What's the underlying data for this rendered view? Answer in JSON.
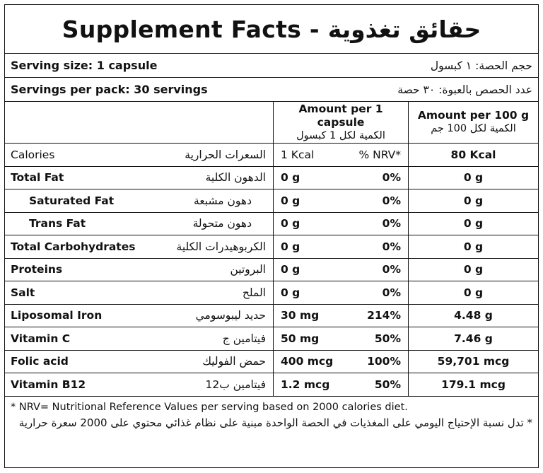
{
  "title": "Supplement Facts - حقائق تغذوية",
  "serving_size": {
    "en": "Serving size: 1 capsule",
    "ar": "حجم الحصة: ١ كبسول"
  },
  "servings_per_pack": {
    "en": "Servings per pack: 30 servings",
    "ar": "عدد الحصص بالعبوة: ٣٠ حصة"
  },
  "header": {
    "col2_en": "Amount per 1 capsule",
    "col2_ar": "الكمية لكل 1 كبسول",
    "col3_en": "Amount per 100 g",
    "col3_ar": "الكمية لكل 100 جم"
  },
  "calories": {
    "en": "Calories",
    "ar": "السعرات الحرارية",
    "amount": "1 Kcal",
    "nrv": "% NRV*",
    "per100": "80 Kcal"
  },
  "nutrients": [
    {
      "en": "Total Fat",
      "ar": "الدهون الكلية",
      "amount": "0 g",
      "nrv": "0%",
      "per100": "0 g"
    },
    {
      "en": "Saturated Fat",
      "ar": "دهون مشبعة",
      "amount": "0 g",
      "nrv": "0%",
      "per100": "0 g"
    },
    {
      "en": "Trans Fat",
      "ar": "دهون متحولة",
      "amount": "0 g",
      "nrv": "0%",
      "per100": "0 g"
    },
    {
      "en": "Total Carbohydrates",
      "ar": "الكربوهيدرات الكلية",
      "amount": "0 g",
      "nrv": "0%",
      "per100": "0 g"
    },
    {
      "en": "Proteins",
      "ar": "البروتين",
      "amount": "0 g",
      "nrv": "0%",
      "per100": "0 g"
    },
    {
      "en": "Salt",
      "ar": "الملح",
      "amount": "0 g",
      "nrv": "0%",
      "per100": "0 g"
    },
    {
      "en": "Liposomal Iron",
      "ar": "حديد ليبوسومي",
      "amount": "30 mg",
      "nrv": "214%",
      "per100": "4.48 g"
    },
    {
      "en": "Vitamin C",
      "ar": "فيتامين ج",
      "amount": "50 mg",
      "nrv": "50%",
      "per100": "7.46 g"
    },
    {
      "en": "Folic acid",
      "ar": "حمض الفوليك",
      "amount": "400 mcg",
      "nrv": "100%",
      "per100": "59,701 mcg"
    },
    {
      "en": "Vitamin B12",
      "ar": "فيتامين ب12",
      "amount": "1.2 mcg",
      "nrv": "50%",
      "per100": "179.1 mcg"
    }
  ],
  "footnote": {
    "en": "* NRV= Nutritional Reference Values per serving based on 2000 calories diet.",
    "ar": "* تدل نسبة الإحتياج اليومي على المغذيات في الحصة الواحدة مبنية على نظام غذائي محتوي على 2000 سعرة حرارية"
  }
}
